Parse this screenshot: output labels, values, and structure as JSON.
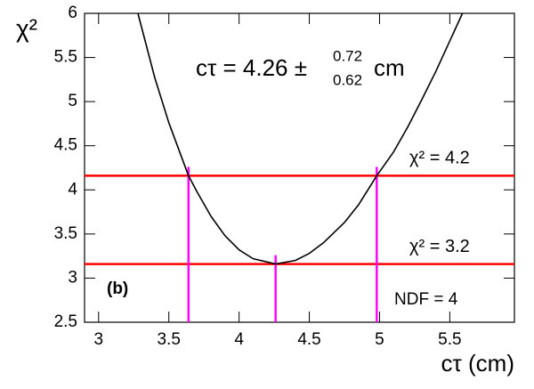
{
  "chart_data": {
    "type": "line",
    "y_label": "χ²",
    "x_label": "cτ (cm)",
    "annotation": {
      "main": "cτ = 4.26 ±",
      "upper": "0.72",
      "lower": "0.62",
      "unit": "cm"
    },
    "panel_label": "(b)",
    "ndf_label": "NDF = 4",
    "x": [
      3.28,
      3.4,
      3.5,
      3.64,
      3.7,
      3.8,
      3.9,
      4.0,
      4.1,
      4.26,
      4.4,
      4.5,
      4.6,
      4.75,
      4.85,
      4.98,
      5.1,
      5.2,
      5.3,
      5.4,
      5.59
    ],
    "series": [
      {
        "color": "#000000",
        "values": [
          6.0,
          5.27,
          4.76,
          4.16,
          3.98,
          3.7,
          3.48,
          3.32,
          3.22,
          3.16,
          3.2,
          3.28,
          3.4,
          3.63,
          3.83,
          4.16,
          4.43,
          4.71,
          5.02,
          5.34,
          6.0
        ]
      }
    ],
    "hlines": [
      {
        "value": 4.16,
        "label": "χ² = 4.2",
        "color": "#ff0000"
      },
      {
        "value": 3.16,
        "label": "χ² = 3.2",
        "color": "#ff0000"
      }
    ],
    "vlines": [
      {
        "x": 3.64,
        "top": 4.26,
        "color": "#ff00ff"
      },
      {
        "x": 4.26,
        "top": 3.26,
        "color": "#ff00ff"
      },
      {
        "x": 4.98,
        "top": 4.26,
        "color": "#ff00ff"
      }
    ],
    "xlim": [
      2.9,
      5.96
    ],
    "ylim": [
      2.5,
      6
    ],
    "xticks": [
      3,
      3.5,
      4,
      4.5,
      5,
      5.5
    ],
    "yticks": [
      2.5,
      3,
      3.5,
      4,
      4.5,
      5,
      5.5,
      6
    ]
  }
}
